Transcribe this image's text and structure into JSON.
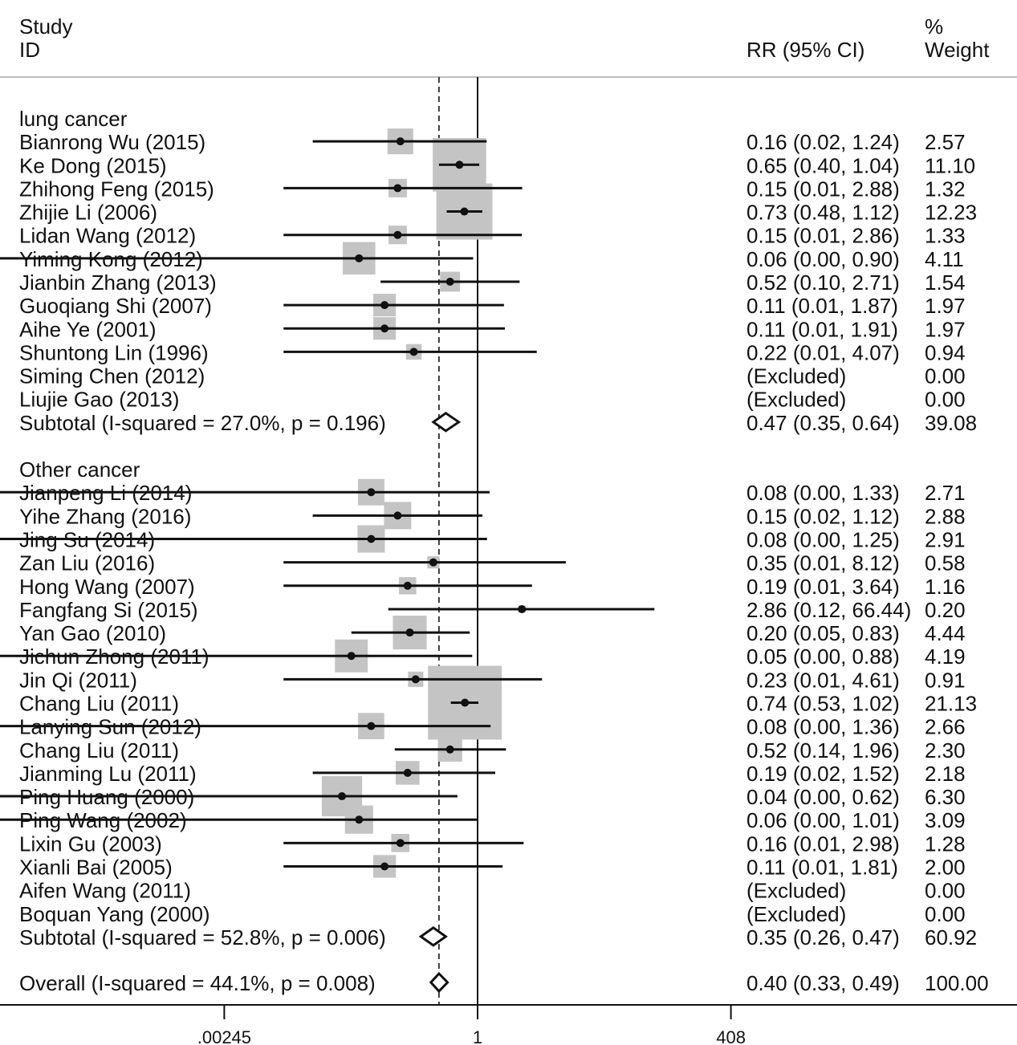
{
  "header": {
    "study_line1": "Study",
    "study_line2": "ID",
    "rr_header": "RR (95% CI)",
    "weight_line1": "%",
    "weight_line2": "Weight"
  },
  "chart_data": {
    "type": "forest",
    "x_scale": "log",
    "xlim": [
      0.00245,
      408
    ],
    "x_ticks": [
      ".00245",
      "1",
      "408"
    ],
    "null_line": 1,
    "overall_line": 0.4,
    "groups": [
      {
        "label": "lung cancer",
        "studies": [
          {
            "name": "Bianrong Wu (2015)",
            "rr": 0.16,
            "lo": 0.02,
            "hi": 1.24,
            "ci": "0.16 (0.02, 1.24)",
            "weight": "2.57"
          },
          {
            "name": "Ke Dong (2015)",
            "rr": 0.65,
            "lo": 0.4,
            "hi": 1.04,
            "ci": "0.65 (0.40, 1.04)",
            "weight": "11.10"
          },
          {
            "name": "Zhihong Feng (2015)",
            "rr": 0.15,
            "lo": 0.01,
            "hi": 2.88,
            "ci": "0.15 (0.01, 2.88)",
            "weight": "1.32"
          },
          {
            "name": "Zhijie Li (2006)",
            "rr": 0.73,
            "lo": 0.48,
            "hi": 1.12,
            "ci": "0.73 (0.48, 1.12)",
            "weight": "12.23"
          },
          {
            "name": "Lidan Wang (2012)",
            "rr": 0.15,
            "lo": 0.01,
            "hi": 2.86,
            "ci": "0.15 (0.01, 2.86)",
            "weight": "1.33"
          },
          {
            "name": "Yiming Kong (2012)",
            "rr": 0.06,
            "lo": 0.0,
            "hi": 0.9,
            "ci": "0.06 (0.00, 0.90)",
            "weight": "4.11"
          },
          {
            "name": "Jianbin Zhang (2013)",
            "rr": 0.52,
            "lo": 0.1,
            "hi": 2.71,
            "ci": "0.52 (0.10, 2.71)",
            "weight": "1.54"
          },
          {
            "name": "Guoqiang Shi (2007)",
            "rr": 0.11,
            "lo": 0.01,
            "hi": 1.87,
            "ci": "0.11 (0.01, 1.87)",
            "weight": "1.97"
          },
          {
            "name": "Aihe Ye (2001)",
            "rr": 0.11,
            "lo": 0.01,
            "hi": 1.91,
            "ci": "0.11 (0.01, 1.91)",
            "weight": "1.97"
          },
          {
            "name": "Shuntong Lin (1996)",
            "rr": 0.22,
            "lo": 0.01,
            "hi": 4.07,
            "ci": "0.22 (0.01, 4.07)",
            "weight": "0.94"
          },
          {
            "name": "Siming Chen (2012)",
            "rr": null,
            "lo": null,
            "hi": null,
            "ci": "(Excluded)",
            "weight": "0.00"
          },
          {
            "name": "Liujie Gao (2013)",
            "rr": null,
            "lo": null,
            "hi": null,
            "ci": "(Excluded)",
            "weight": "0.00"
          }
        ],
        "subtotal": {
          "label": "Subtotal  (I-squared = 27.0%, p = 0.196)",
          "rr": 0.47,
          "lo": 0.35,
          "hi": 0.64,
          "ci": "0.47 (0.35, 0.64)",
          "weight": "39.08"
        }
      },
      {
        "label": "Other cancer",
        "studies": [
          {
            "name": "Jianpeng Li (2014)",
            "rr": 0.08,
            "lo": 0.0,
            "hi": 1.33,
            "ci": "0.08 (0.00, 1.33)",
            "weight": "2.71"
          },
          {
            "name": "Yihe Zhang (2016)",
            "rr": 0.15,
            "lo": 0.02,
            "hi": 1.12,
            "ci": "0.15 (0.02, 1.12)",
            "weight": "2.88"
          },
          {
            "name": "Jing Su (2014)",
            "rr": 0.08,
            "lo": 0.0,
            "hi": 1.25,
            "ci": "0.08 (0.00, 1.25)",
            "weight": "2.91"
          },
          {
            "name": "Zan Liu (2016)",
            "rr": 0.35,
            "lo": 0.01,
            "hi": 8.12,
            "ci": "0.35 (0.01, 8.12)",
            "weight": "0.58"
          },
          {
            "name": "Hong Wang (2007)",
            "rr": 0.19,
            "lo": 0.01,
            "hi": 3.64,
            "ci": "0.19 (0.01, 3.64)",
            "weight": "1.16"
          },
          {
            "name": "Fangfang Si (2015)",
            "rr": 2.86,
            "lo": 0.12,
            "hi": 66.44,
            "ci": "2.86 (0.12, 66.44)",
            "weight": "0.20"
          },
          {
            "name": "Yan Gao (2010)",
            "rr": 0.2,
            "lo": 0.05,
            "hi": 0.83,
            "ci": "0.20 (0.05, 0.83)",
            "weight": "4.44"
          },
          {
            "name": "Jichun Zhong (2011)",
            "rr": 0.05,
            "lo": 0.0,
            "hi": 0.88,
            "ci": "0.05 (0.00, 0.88)",
            "weight": "4.19"
          },
          {
            "name": "Jin Qi (2011)",
            "rr": 0.23,
            "lo": 0.01,
            "hi": 4.61,
            "ci": "0.23 (0.01, 4.61)",
            "weight": "0.91"
          },
          {
            "name": "Chang Liu (2011)",
            "rr": 0.74,
            "lo": 0.53,
            "hi": 1.02,
            "ci": "0.74 (0.53, 1.02)",
            "weight": "21.13"
          },
          {
            "name": "Lanying Sun (2012)",
            "rr": 0.08,
            "lo": 0.0,
            "hi": 1.36,
            "ci": "0.08 (0.00, 1.36)",
            "weight": "2.66"
          },
          {
            "name": "Chang Liu (2011)",
            "rr": 0.52,
            "lo": 0.14,
            "hi": 1.96,
            "ci": "0.52 (0.14, 1.96)",
            "weight": "2.30"
          },
          {
            "name": "Jianming Lu (2011)",
            "rr": 0.19,
            "lo": 0.02,
            "hi": 1.52,
            "ci": "0.19 (0.02, 1.52)",
            "weight": "2.18"
          },
          {
            "name": "Ping Huang (2000)",
            "rr": 0.04,
            "lo": 0.0,
            "hi": 0.62,
            "ci": "0.04 (0.00, 0.62)",
            "weight": "6.30"
          },
          {
            "name": "Ping Wang (2002)",
            "rr": 0.06,
            "lo": 0.0,
            "hi": 1.01,
            "ci": "0.06 (0.00, 1.01)",
            "weight": "3.09"
          },
          {
            "name": "Lixin Gu (2003)",
            "rr": 0.16,
            "lo": 0.01,
            "hi": 2.98,
            "ci": "0.16 (0.01, 2.98)",
            "weight": "1.28"
          },
          {
            "name": "Xianli Bai (2005)",
            "rr": 0.11,
            "lo": 0.01,
            "hi": 1.81,
            "ci": "0.11 (0.01, 1.81)",
            "weight": "2.00"
          },
          {
            "name": "Aifen Wang (2011)",
            "rr": null,
            "lo": null,
            "hi": null,
            "ci": "(Excluded)",
            "weight": "0.00"
          },
          {
            "name": "Boquan Yang (2000)",
            "rr": null,
            "lo": null,
            "hi": null,
            "ci": "(Excluded)",
            "weight": "0.00"
          }
        ],
        "subtotal": {
          "label": "Subtotal  (I-squared = 52.8%, p = 0.006)",
          "rr": 0.35,
          "lo": 0.26,
          "hi": 0.47,
          "ci": "0.35 (0.26, 0.47)",
          "weight": "60.92"
        }
      }
    ],
    "overall": {
      "label": "Overall  (I-squared = 44.1%, p = 0.008)",
      "rr": 0.4,
      "lo": 0.33,
      "hi": 0.49,
      "ci": "0.40 (0.33, 0.49)",
      "weight": "100.00"
    },
    "colors": {
      "box": "#c4c4c4",
      "line": "#111111",
      "rule": "#bdbdbd"
    }
  }
}
